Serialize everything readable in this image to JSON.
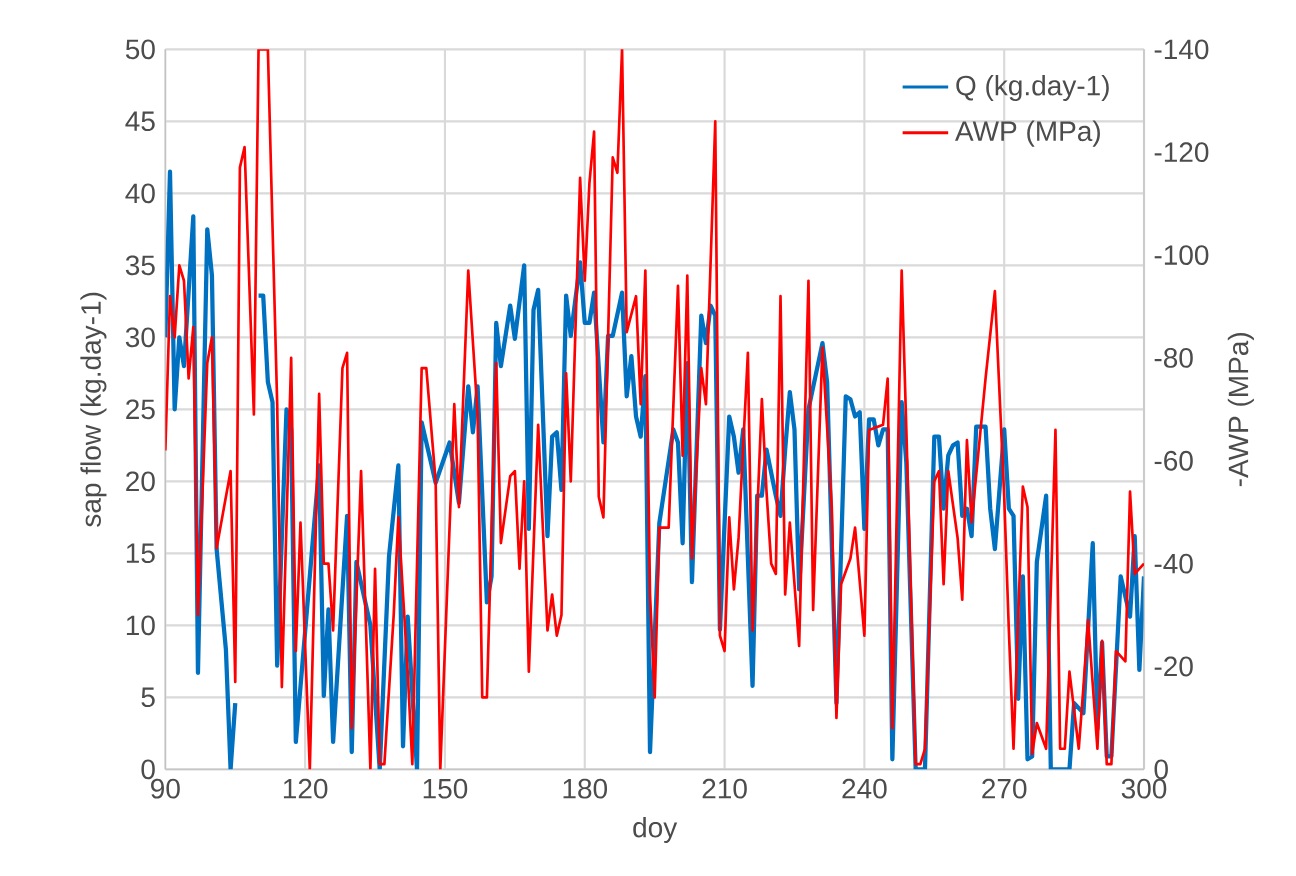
{
  "chart_data": {
    "type": "line",
    "xlabel": "doy",
    "ylabel": "sap flow (kg.day-1)",
    "y2label": "-AWP (MPa)",
    "xlim": [
      90,
      300
    ],
    "xticks": [
      90,
      120,
      150,
      180,
      210,
      240,
      270,
      300
    ],
    "ylim": [
      0,
      50
    ],
    "yticks": [
      0,
      5,
      10,
      15,
      20,
      25,
      30,
      35,
      40,
      45,
      50
    ],
    "y2lim": [
      0,
      -140
    ],
    "y2ticks": [
      0,
      -20,
      -40,
      -60,
      -80,
      -100,
      -120,
      -140
    ],
    "grid": true,
    "legend": "top right",
    "series": [
      {
        "name": "Q (kg.day-1)",
        "color": "#0070c0",
        "x": [
          90,
          91,
          92,
          93,
          94,
          96,
          97,
          99,
          100,
          101,
          103,
          104,
          105,
          107,
          110,
          111,
          112,
          113,
          114,
          116,
          117,
          118,
          123,
          124,
          125,
          126,
          129,
          130,
          131,
          134,
          136,
          138,
          140,
          141,
          142,
          144,
          145,
          148,
          151,
          153,
          155,
          156,
          157,
          159,
          160,
          161,
          162,
          164,
          165,
          167,
          168,
          169,
          170,
          172,
          173,
          174,
          175,
          176,
          177,
          179,
          180,
          181,
          182,
          184,
          185,
          186,
          188,
          189,
          190,
          191,
          192,
          193,
          194,
          196,
          199,
          200,
          201,
          202,
          203,
          205,
          206,
          207,
          208,
          209,
          211,
          212,
          213,
          214,
          216,
          217,
          218,
          219,
          221,
          222,
          223,
          224,
          225,
          226,
          228,
          231,
          232,
          234,
          236,
          237,
          238,
          239,
          240,
          241,
          242,
          243,
          244,
          245,
          246,
          248,
          249,
          251,
          253,
          255,
          256,
          257,
          258,
          259,
          260,
          261,
          262,
          263,
          264,
          266,
          267,
          268,
          270,
          271,
          272,
          273,
          274,
          275,
          276,
          277,
          279,
          280,
          283,
          284,
          285,
          287,
          289,
          290,
          291,
          292,
          293,
          295,
          297,
          298,
          299,
          300
        ],
        "values": [
          30,
          41.5,
          25,
          30,
          28,
          38.4,
          6.7,
          37.5,
          34.3,
          15.3,
          8.3,
          0,
          4.6,
          null,
          32.9,
          32.9,
          26.9,
          25.5,
          7.2,
          25,
          23.6,
          1.9,
          21.1,
          5.1,
          11.1,
          1.9,
          17.6,
          1.2,
          14.4,
          10,
          0,
          14.8,
          21.1,
          1.6,
          10.6,
          0,
          24.1,
          19.9,
          22.7,
          18.5,
          26.6,
          23.4,
          26.6,
          11.6,
          13.4,
          31,
          28,
          32.2,
          29.9,
          35,
          16.7,
          31.9,
          33.3,
          16.2,
          23.1,
          23.4,
          19.4,
          32.9,
          30.1,
          35.2,
          31,
          31,
          33.1,
          22.7,
          30.1,
          30.1,
          33.1,
          25.9,
          28.7,
          24.5,
          23.1,
          27.3,
          1.2,
          17.1,
          23.6,
          22.7,
          15.7,
          28.2,
          13,
          31.5,
          29.6,
          32.2,
          31.5,
          9.7,
          24.5,
          23.1,
          20.6,
          23.6,
          5.8,
          19,
          19,
          22.2,
          19,
          17.6,
          22.2,
          26.2,
          23.6,
          12.5,
          25,
          29.6,
          26.9,
          4.6,
          25.9,
          25.7,
          24.5,
          24.8,
          16.7,
          24.3,
          24.3,
          22.5,
          23.6,
          23.6,
          0.7,
          25.5,
          21.3,
          0,
          0,
          23.1,
          23.1,
          18.1,
          21.8,
          22.5,
          22.7,
          17.6,
          18.1,
          16.2,
          23.8,
          23.8,
          18.1,
          15.3,
          23.6,
          18.1,
          17.6,
          4.9,
          13.4,
          0.7,
          0.9,
          14.4,
          19,
          0,
          0,
          0,
          4.6,
          3.9,
          15.7,
          2.8,
          8.8,
          0.9,
          0.9,
          13.4,
          10.6,
          16.2,
          6.9,
          13.4
        ]
      },
      {
        "name": "AWP (MPa)",
        "color": "#ff0000",
        "axis": "y2",
        "x": [
          90,
          91,
          92,
          93,
          94,
          95,
          96,
          97,
          99,
          100,
          101,
          104,
          105,
          106,
          107,
          109,
          110,
          112,
          114,
          115,
          117,
          118,
          119,
          121,
          123,
          124,
          125,
          126,
          128,
          129,
          130,
          132,
          134,
          135,
          136,
          137,
          139,
          140,
          142,
          143,
          145,
          146,
          148,
          149,
          152,
          153,
          155,
          157,
          158,
          159,
          161,
          162,
          164,
          165,
          166,
          167,
          168,
          170,
          172,
          173,
          174,
          175,
          176,
          177,
          179,
          180,
          181,
          182,
          183,
          184,
          186,
          187,
          188,
          189,
          191,
          192,
          193,
          194,
          195,
          196,
          198,
          200,
          201,
          202,
          203,
          205,
          206,
          208,
          209,
          210,
          211,
          212,
          213,
          215,
          216,
          218,
          219,
          220,
          221,
          222,
          223,
          224,
          226,
          228,
          229,
          231,
          233,
          234,
          235,
          237,
          238,
          240,
          241,
          244,
          245,
          246,
          248,
          249,
          251,
          252,
          253,
          255,
          256,
          257,
          258,
          260,
          261,
          262,
          263,
          266,
          268,
          270,
          271,
          272,
          274,
          275,
          276,
          277,
          279,
          281,
          282,
          283,
          284,
          286,
          287,
          288,
          290,
          291,
          292,
          293,
          294,
          296,
          297,
          298,
          300
        ],
        "values": [
          -62,
          -92,
          -84,
          -98,
          -95,
          -76,
          -86,
          -30,
          -79,
          -84,
          -43,
          -58,
          -17,
          -117,
          -121,
          -69,
          -140,
          -140,
          -71,
          -16,
          -80,
          -23,
          -48,
          0,
          -73,
          -40,
          -40,
          -27,
          -78,
          -81,
          -8,
          -58,
          0,
          -39,
          -1,
          -1,
          -30,
          -49,
          -19,
          -1,
          -78,
          -78,
          -56,
          0,
          -71,
          -51,
          -97,
          -69,
          -14,
          -14,
          -79,
          -44,
          -57,
          -58,
          -39,
          -56,
          -19,
          -67,
          -27,
          -34,
          -26,
          -30,
          -77,
          -56,
          -115,
          -95,
          -114,
          -124,
          -53,
          -49,
          -119,
          -116,
          -140,
          -85,
          -92,
          -71,
          -97,
          -34,
          -14,
          -47,
          -47,
          -94,
          -61,
          -96,
          -41,
          -78,
          -71,
          -126,
          -26,
          -23,
          -49,
          -35,
          -45,
          -81,
          -27,
          -72,
          -54,
          -40,
          -38,
          -92,
          -34,
          -48,
          -24,
          -95,
          -31,
          -82,
          -51,
          -10,
          -36,
          -41,
          -47,
          -26,
          -66,
          -67,
          -76,
          -8,
          -97,
          -66,
          -1,
          -1,
          -4,
          -56,
          -58,
          -36,
          -58,
          -45,
          -33,
          -64,
          -48,
          -76,
          -93,
          -53,
          -27,
          -4,
          -55,
          -51,
          -3,
          -9,
          -4,
          -66,
          -4,
          -4,
          -19,
          -4,
          -16,
          -29,
          -4,
          -25,
          -1,
          -1,
          -23,
          -21,
          -54,
          -38,
          -40
        ]
      }
    ]
  }
}
